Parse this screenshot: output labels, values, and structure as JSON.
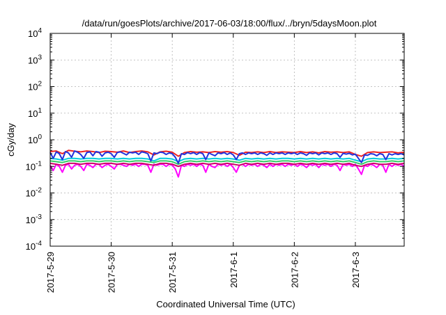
{
  "chart_data": {
    "type": "line",
    "title": "/data/run/goesPlots/archive/2017-06-03/18:00/flux/../bryn/5daysMoon.plot",
    "xlabel": "Coordinated Universal Time (UTC)",
    "ylabel": "cGy/day",
    "yscale": "log",
    "ylim": [
      0.0001,
      10000
    ],
    "xlim": [
      0,
      5.8
    ],
    "x_ticks": [
      {
        "value": 0,
        "label": "2017-5-29"
      },
      {
        "value": 1,
        "label": "2017-5-30"
      },
      {
        "value": 2,
        "label": "2017-5-31"
      },
      {
        "value": 3,
        "label": "2017-6-1"
      },
      {
        "value": 4,
        "label": "2017-6-2"
      },
      {
        "value": 5,
        "label": "2017-6-3"
      }
    ],
    "y_ticks": [
      {
        "value": 0.0001,
        "base": "10",
        "exp": "-4"
      },
      {
        "value": 0.001,
        "base": "10",
        "exp": "-3"
      },
      {
        "value": 0.01,
        "base": "10",
        "exp": "-2"
      },
      {
        "value": 0.1,
        "base": "10",
        "exp": "-1"
      },
      {
        "value": 1,
        "base": "10",
        "exp": "0"
      },
      {
        "value": 10,
        "base": "10",
        "exp": "1"
      },
      {
        "value": 100,
        "base": "10",
        "exp": "2"
      },
      {
        "value": 1000,
        "base": "10",
        "exp": "3"
      },
      {
        "value": 10000,
        "base": "10",
        "exp": "4"
      }
    ],
    "grid": true,
    "legend": "none",
    "series": [
      {
        "color": "#ff00ff",
        "x": [
          0.0,
          0.05,
          0.1,
          0.15,
          0.2,
          0.25,
          0.3,
          0.35,
          0.4,
          0.45,
          0.5,
          0.55,
          0.6,
          0.65,
          0.7,
          0.75,
          0.8,
          0.85,
          0.9,
          0.95,
          1.0,
          1.05,
          1.1,
          1.15,
          1.2,
          1.25,
          1.3,
          1.35,
          1.4,
          1.45,
          1.5,
          1.55,
          1.6,
          1.65,
          1.7,
          1.75,
          1.8,
          1.85,
          1.9,
          1.95,
          2.0,
          2.05,
          2.1,
          2.15,
          2.2,
          2.25,
          2.3,
          2.35,
          2.4,
          2.45,
          2.5,
          2.55,
          2.6,
          2.65,
          2.7,
          2.75,
          2.8,
          2.85,
          2.9,
          2.95,
          3.0,
          3.05,
          3.1,
          3.15,
          3.2,
          3.25,
          3.3,
          3.35,
          3.4,
          3.45,
          3.5,
          3.55,
          3.6,
          3.65,
          3.7,
          3.75,
          3.8,
          3.85,
          3.9,
          3.95,
          4.0,
          4.05,
          4.1,
          4.15,
          4.2,
          4.25,
          4.3,
          4.35,
          4.4,
          4.45,
          4.5,
          4.55,
          4.6,
          4.65,
          4.7,
          4.75,
          4.8,
          4.85,
          4.9,
          4.95,
          5.0,
          5.05,
          5.1,
          5.15,
          5.2,
          5.25,
          5.3,
          5.35,
          5.4,
          5.45,
          5.5,
          5.55,
          5.6,
          5.65,
          5.7,
          5.75,
          5.8
        ],
        "y": [
          0.11,
          0.07,
          0.12,
          0.1,
          0.06,
          0.11,
          0.12,
          0.08,
          0.11,
          0.12,
          0.1,
          0.07,
          0.12,
          0.11,
          0.09,
          0.12,
          0.12,
          0.09,
          0.11,
          0.12,
          0.1,
          0.08,
          0.12,
          0.12,
          0.11,
          0.1,
          0.12,
          0.11,
          0.12,
          0.1,
          0.12,
          0.12,
          0.11,
          0.06,
          0.12,
          0.11,
          0.12,
          0.12,
          0.1,
          0.12,
          0.11,
          0.08,
          0.04,
          0.11,
          0.1,
          0.12,
          0.11,
          0.12,
          0.1,
          0.12,
          0.11,
          0.06,
          0.12,
          0.1,
          0.09,
          0.12,
          0.11,
          0.12,
          0.1,
          0.12,
          0.09,
          0.06,
          0.11,
          0.12,
          0.1,
          0.12,
          0.11,
          0.12,
          0.1,
          0.12,
          0.11,
          0.09,
          0.12,
          0.1,
          0.12,
          0.11,
          0.12,
          0.1,
          0.12,
          0.11,
          0.12,
          0.1,
          0.12,
          0.11,
          0.09,
          0.12,
          0.11,
          0.12,
          0.09,
          0.12,
          0.11,
          0.12,
          0.1,
          0.12,
          0.11,
          0.07,
          0.12,
          0.11,
          0.12,
          0.1,
          0.12,
          0.08,
          0.05,
          0.11,
          0.1,
          0.12,
          0.11,
          0.09,
          0.12,
          0.11,
          0.06,
          0.12,
          0.1,
          0.12,
          0.11,
          0.12,
          0.1
        ]
      },
      {
        "color": "#cc0066",
        "x": [
          0.0,
          0.1,
          0.2,
          0.3,
          0.4,
          0.5,
          0.6,
          0.7,
          0.8,
          0.9,
          1.0,
          1.1,
          1.2,
          1.3,
          1.4,
          1.5,
          1.6,
          1.7,
          1.8,
          1.9,
          2.0,
          2.1,
          2.2,
          2.3,
          2.4,
          2.5,
          2.6,
          2.7,
          2.8,
          2.9,
          3.0,
          3.1,
          3.2,
          3.3,
          3.4,
          3.5,
          3.6,
          3.7,
          3.8,
          3.9,
          4.0,
          4.1,
          4.2,
          4.3,
          4.4,
          4.5,
          4.6,
          4.7,
          4.8,
          4.9,
          5.0,
          5.1,
          5.2,
          5.3,
          5.4,
          5.5,
          5.6,
          5.7,
          5.8
        ],
        "y": [
          0.13,
          0.12,
          0.11,
          0.13,
          0.13,
          0.12,
          0.13,
          0.13,
          0.12,
          0.13,
          0.13,
          0.12,
          0.13,
          0.12,
          0.13,
          0.13,
          0.12,
          0.11,
          0.13,
          0.13,
          0.12,
          0.1,
          0.12,
          0.13,
          0.12,
          0.13,
          0.12,
          0.13,
          0.12,
          0.13,
          0.12,
          0.11,
          0.13,
          0.12,
          0.13,
          0.12,
          0.13,
          0.12,
          0.13,
          0.13,
          0.12,
          0.13,
          0.12,
          0.13,
          0.12,
          0.13,
          0.12,
          0.13,
          0.12,
          0.13,
          0.11,
          0.1,
          0.12,
          0.13,
          0.12,
          0.12,
          0.13,
          0.12,
          0.13
        ]
      },
      {
        "color": "#33cc66",
        "x": [
          0.0,
          0.1,
          0.2,
          0.3,
          0.4,
          0.5,
          0.6,
          0.7,
          0.8,
          0.9,
          1.0,
          1.1,
          1.2,
          1.3,
          1.4,
          1.5,
          1.6,
          1.7,
          1.8,
          1.9,
          2.0,
          2.1,
          2.2,
          2.3,
          2.4,
          2.5,
          2.6,
          2.7,
          2.8,
          2.9,
          3.0,
          3.1,
          3.2,
          3.3,
          3.4,
          3.5,
          3.6,
          3.7,
          3.8,
          3.9,
          4.0,
          4.1,
          4.2,
          4.3,
          4.4,
          4.5,
          4.6,
          4.7,
          4.8,
          4.9,
          5.0,
          5.1,
          5.2,
          5.3,
          5.4,
          5.5,
          5.6,
          5.7,
          5.8
        ],
        "y": [
          0.16,
          0.15,
          0.14,
          0.16,
          0.16,
          0.15,
          0.16,
          0.16,
          0.15,
          0.16,
          0.16,
          0.15,
          0.16,
          0.15,
          0.16,
          0.16,
          0.15,
          0.14,
          0.16,
          0.16,
          0.15,
          0.12,
          0.15,
          0.16,
          0.15,
          0.16,
          0.15,
          0.16,
          0.15,
          0.16,
          0.15,
          0.14,
          0.16,
          0.15,
          0.16,
          0.15,
          0.16,
          0.15,
          0.16,
          0.16,
          0.15,
          0.16,
          0.15,
          0.16,
          0.15,
          0.16,
          0.15,
          0.16,
          0.15,
          0.16,
          0.14,
          0.12,
          0.15,
          0.16,
          0.15,
          0.15,
          0.16,
          0.15,
          0.16
        ]
      },
      {
        "color": "#00ccdd",
        "x": [
          0.0,
          0.1,
          0.2,
          0.3,
          0.4,
          0.5,
          0.6,
          0.7,
          0.8,
          0.9,
          1.0,
          1.1,
          1.2,
          1.3,
          1.4,
          1.5,
          1.6,
          1.7,
          1.8,
          1.9,
          2.0,
          2.1,
          2.2,
          2.3,
          2.4,
          2.5,
          2.6,
          2.7,
          2.8,
          2.9,
          3.0,
          3.1,
          3.2,
          3.3,
          3.4,
          3.5,
          3.6,
          3.7,
          3.8,
          3.9,
          4.0,
          4.1,
          4.2,
          4.3,
          4.4,
          4.5,
          4.6,
          4.7,
          4.8,
          4.9,
          5.0,
          5.1,
          5.2,
          5.3,
          5.4,
          5.5,
          5.6,
          5.7,
          5.8
        ],
        "y": [
          0.2,
          0.19,
          0.17,
          0.2,
          0.2,
          0.19,
          0.2,
          0.2,
          0.19,
          0.2,
          0.2,
          0.19,
          0.2,
          0.19,
          0.2,
          0.2,
          0.19,
          0.16,
          0.2,
          0.2,
          0.19,
          0.15,
          0.19,
          0.2,
          0.19,
          0.2,
          0.19,
          0.2,
          0.19,
          0.2,
          0.19,
          0.17,
          0.2,
          0.19,
          0.2,
          0.19,
          0.2,
          0.19,
          0.2,
          0.2,
          0.19,
          0.2,
          0.19,
          0.2,
          0.19,
          0.2,
          0.19,
          0.2,
          0.19,
          0.2,
          0.17,
          0.15,
          0.19,
          0.2,
          0.19,
          0.19,
          0.2,
          0.19,
          0.2
        ]
      },
      {
        "color": "#ee2222",
        "x": [
          0.0,
          0.1,
          0.2,
          0.3,
          0.4,
          0.5,
          0.6,
          0.7,
          0.8,
          0.9,
          1.0,
          1.1,
          1.2,
          1.3,
          1.4,
          1.5,
          1.6,
          1.7,
          1.8,
          1.9,
          2.0,
          2.1,
          2.2,
          2.3,
          2.4,
          2.5,
          2.6,
          2.7,
          2.8,
          2.9,
          3.0,
          3.1,
          3.2,
          3.3,
          3.4,
          3.5,
          3.6,
          3.7,
          3.8,
          3.9,
          4.0,
          4.1,
          4.2,
          4.3,
          4.4,
          4.5,
          4.6,
          4.7,
          4.8,
          4.9,
          5.0,
          5.1,
          5.2,
          5.3,
          5.4,
          5.5,
          5.6,
          5.7,
          5.8
        ],
        "y": [
          0.36,
          0.38,
          0.3,
          0.4,
          0.37,
          0.35,
          0.38,
          0.36,
          0.33,
          0.37,
          0.36,
          0.34,
          0.38,
          0.33,
          0.36,
          0.38,
          0.35,
          0.27,
          0.35,
          0.37,
          0.34,
          0.24,
          0.33,
          0.36,
          0.34,
          0.35,
          0.33,
          0.36,
          0.34,
          0.36,
          0.33,
          0.26,
          0.34,
          0.33,
          0.35,
          0.33,
          0.36,
          0.33,
          0.35,
          0.34,
          0.33,
          0.36,
          0.33,
          0.35,
          0.32,
          0.36,
          0.34,
          0.35,
          0.33,
          0.35,
          0.28,
          0.24,
          0.33,
          0.35,
          0.33,
          0.34,
          0.35,
          0.32,
          0.34
        ]
      },
      {
        "color": "#2233dd",
        "x": [
          0.0,
          0.05,
          0.1,
          0.15,
          0.2,
          0.25,
          0.3,
          0.35,
          0.4,
          0.45,
          0.5,
          0.55,
          0.6,
          0.65,
          0.7,
          0.75,
          0.8,
          0.85,
          0.9,
          0.95,
          1.0,
          1.05,
          1.1,
          1.15,
          1.2,
          1.25,
          1.3,
          1.35,
          1.4,
          1.45,
          1.5,
          1.55,
          1.6,
          1.65,
          1.7,
          1.75,
          1.8,
          1.85,
          1.9,
          1.95,
          2.0,
          2.05,
          2.1,
          2.15,
          2.2,
          2.25,
          2.3,
          2.35,
          2.4,
          2.45,
          2.5,
          2.55,
          2.6,
          2.65,
          2.7,
          2.75,
          2.8,
          2.85,
          2.9,
          2.95,
          3.0,
          3.05,
          3.1,
          3.15,
          3.2,
          3.25,
          3.3,
          3.35,
          3.4,
          3.45,
          3.5,
          3.55,
          3.6,
          3.65,
          3.7,
          3.75,
          3.8,
          3.85,
          3.9,
          3.95,
          4.0,
          4.05,
          4.1,
          4.15,
          4.2,
          4.25,
          4.3,
          4.35,
          4.4,
          4.45,
          4.5,
          4.55,
          4.6,
          4.65,
          4.7,
          4.75,
          4.8,
          4.85,
          4.9,
          4.95,
          5.0,
          5.05,
          5.1,
          5.15,
          5.2,
          5.25,
          5.3,
          5.35,
          5.4,
          5.45,
          5.5,
          5.55,
          5.6,
          5.65,
          5.7,
          5.75,
          5.8
        ],
        "y": [
          0.33,
          0.2,
          0.35,
          0.3,
          0.18,
          0.36,
          0.32,
          0.22,
          0.38,
          0.34,
          0.28,
          0.2,
          0.33,
          0.35,
          0.25,
          0.36,
          0.34,
          0.24,
          0.32,
          0.34,
          0.3,
          0.22,
          0.33,
          0.35,
          0.31,
          0.27,
          0.34,
          0.32,
          0.34,
          0.28,
          0.35,
          0.33,
          0.3,
          0.16,
          0.32,
          0.3,
          0.34,
          0.33,
          0.28,
          0.32,
          0.3,
          0.22,
          0.13,
          0.3,
          0.28,
          0.33,
          0.3,
          0.33,
          0.28,
          0.33,
          0.3,
          0.18,
          0.32,
          0.28,
          0.25,
          0.32,
          0.3,
          0.33,
          0.28,
          0.32,
          0.27,
          0.18,
          0.3,
          0.32,
          0.28,
          0.32,
          0.3,
          0.32,
          0.28,
          0.32,
          0.3,
          0.26,
          0.32,
          0.28,
          0.32,
          0.3,
          0.32,
          0.28,
          0.32,
          0.3,
          0.32,
          0.28,
          0.32,
          0.3,
          0.26,
          0.32,
          0.3,
          0.32,
          0.27,
          0.32,
          0.3,
          0.32,
          0.28,
          0.32,
          0.3,
          0.22,
          0.31,
          0.29,
          0.31,
          0.27,
          0.29,
          0.2,
          0.14,
          0.27,
          0.26,
          0.3,
          0.29,
          0.25,
          0.3,
          0.28,
          0.18,
          0.3,
          0.27,
          0.3,
          0.28,
          0.3,
          0.27
        ]
      }
    ]
  }
}
